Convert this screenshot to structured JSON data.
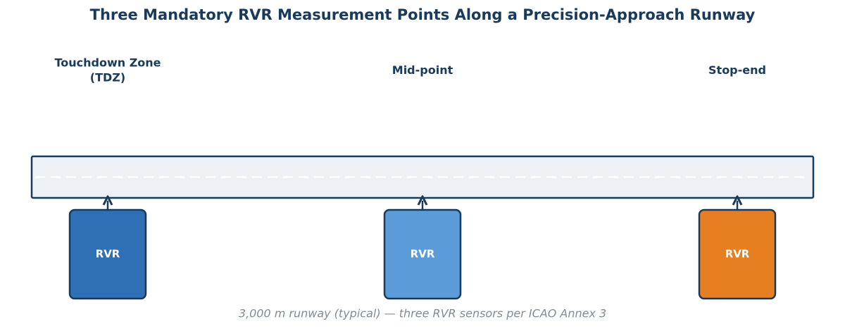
{
  "title": "Three Mandatory RVR Measurement Points Along a Precision-Approach Runway",
  "points": [
    {
      "label": "Touchdown Zone\n(TDZ)",
      "sensor": "RVR",
      "color": "#2e6fb5"
    },
    {
      "label": "Mid-point",
      "sensor": "RVR",
      "color": "#5b9bd8"
    },
    {
      "label": "Stop-end",
      "sensor": "RVR",
      "color": "#e67e22"
    }
  ],
  "caption": "3,000 m runway (typical) — three RVR sensors per ICAO Annex 3"
}
